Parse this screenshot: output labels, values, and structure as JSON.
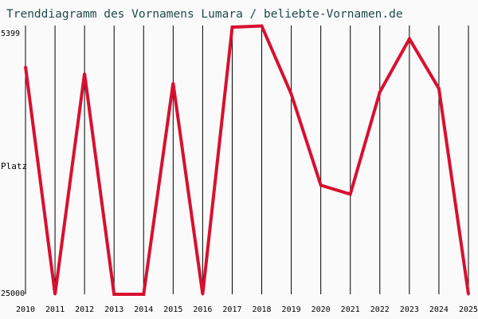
{
  "chart_data": {
    "type": "line",
    "title": "Trenddiagramm des Vornamens Lumara / beliebte-Vornamen.de",
    "ylabel": "Platz",
    "yaxis_inverted": true,
    "ylim": [
      25000,
      5399
    ],
    "ytick_labels": [
      "5399",
      "25000"
    ],
    "grid": "vertical",
    "line_color": "#d8102f",
    "series": [
      {
        "x": [
          "2010",
          "2011",
          "2012",
          "2013",
          "2014",
          "2015",
          "2016",
          "2017",
          "2018",
          "2019",
          "2020",
          "2021",
          "2022",
          "2023",
          "2024",
          "2025"
        ],
        "values": [
          8400,
          25000,
          8900,
          25000,
          25000,
          9600,
          25000,
          5520,
          5430,
          10400,
          17050,
          17700,
          10250,
          6370,
          10000,
          25000
        ]
      }
    ]
  }
}
